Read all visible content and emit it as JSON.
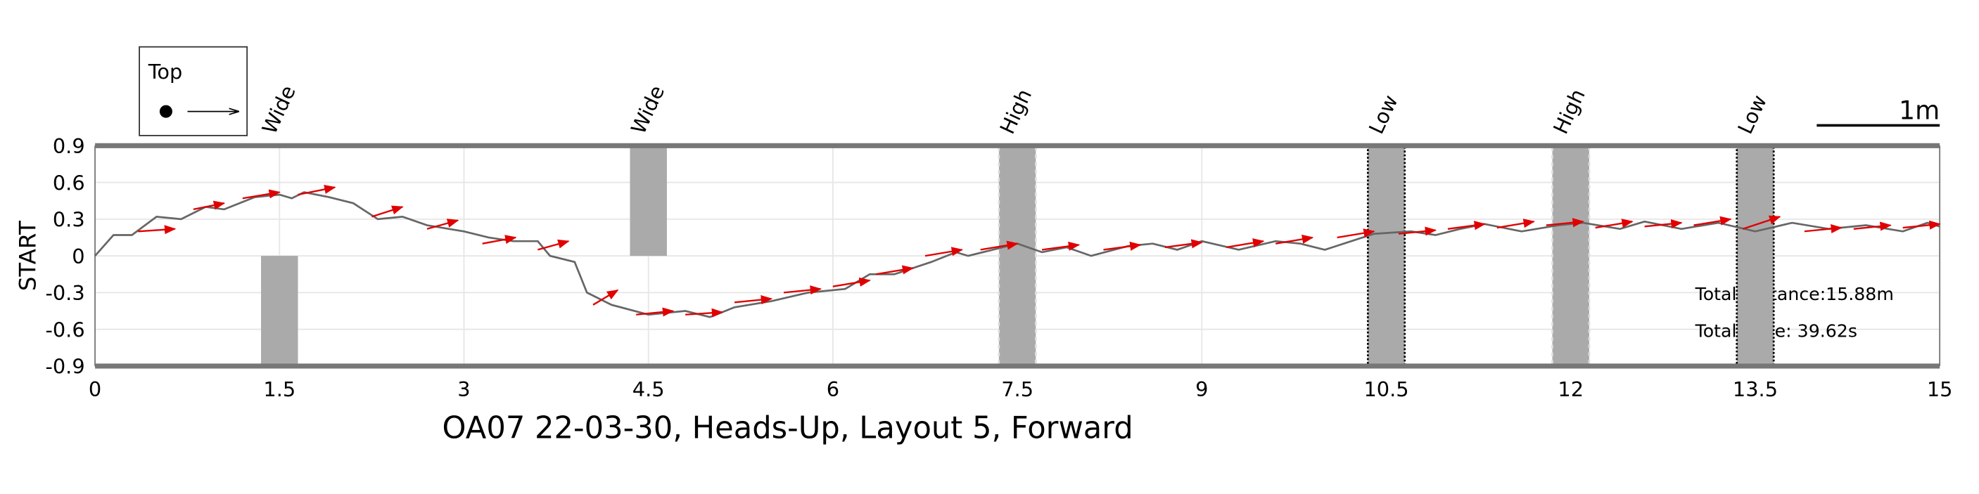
{
  "chart_data": {
    "type": "line",
    "title": "OA07 22-03-30, Heads-Up, Layout 5, Forward",
    "ylabel": "START",
    "xlim": [
      0,
      15
    ],
    "ylim": [
      -0.9,
      0.9
    ],
    "xticks": [
      0,
      1.5,
      3,
      4.5,
      6,
      7.5,
      9,
      10.5,
      12,
      13.5,
      15
    ],
    "yticks": [
      -0.9,
      -0.6,
      -0.3,
      0,
      0.3,
      0.6,
      0.9
    ],
    "grid": true,
    "line_color": "#666666",
    "arrow_color": "#e00000",
    "obstacle_color": "#aaaaaa",
    "x": [
      0,
      0.15,
      0.3,
      0.5,
      0.7,
      0.9,
      1.05,
      1.3,
      1.5,
      1.6,
      1.7,
      1.9,
      2.1,
      2.3,
      2.5,
      2.7,
      3.0,
      3.2,
      3.4,
      3.6,
      3.7,
      3.9,
      4.0,
      4.2,
      4.5,
      4.8,
      5.0,
      5.2,
      5.5,
      5.8,
      6.1,
      6.3,
      6.5,
      6.8,
      7.0,
      7.1,
      7.3,
      7.5,
      7.7,
      7.9,
      8.1,
      8.4,
      8.6,
      8.8,
      9.0,
      9.3,
      9.6,
      9.8,
      10.0,
      10.4,
      10.7,
      10.9,
      11.1,
      11.3,
      11.6,
      11.9,
      12.1,
      12.4,
      12.6,
      12.9,
      13.2,
      13.5,
      13.8,
      14.1,
      14.4,
      14.7,
      14.9,
      15.0
    ],
    "y": [
      0,
      0.17,
      0.17,
      0.32,
      0.3,
      0.4,
      0.38,
      0.48,
      0.5,
      0.47,
      0.52,
      0.48,
      0.43,
      0.3,
      0.32,
      0.25,
      0.2,
      0.15,
      0.12,
      0.12,
      0.0,
      -0.05,
      -0.3,
      -0.4,
      -0.48,
      -0.45,
      -0.5,
      -0.42,
      -0.37,
      -0.3,
      -0.27,
      -0.15,
      -0.15,
      -0.05,
      0.03,
      0.0,
      0.05,
      0.1,
      0.03,
      0.07,
      0.0,
      0.08,
      0.1,
      0.05,
      0.12,
      0.05,
      0.12,
      0.1,
      0.05,
      0.18,
      0.2,
      0.17,
      0.22,
      0.26,
      0.2,
      0.25,
      0.27,
      0.22,
      0.28,
      0.22,
      0.27,
      0.2,
      0.27,
      0.22,
      0.25,
      0.2,
      0.27,
      0.24
    ],
    "arrows": {
      "x": [
        0.35,
        0.8,
        1.2,
        1.65,
        2.25,
        2.7,
        3.15,
        3.6,
        4.05,
        4.4,
        4.8,
        5.2,
        5.6,
        6.0,
        6.35,
        6.75,
        7.2,
        7.7,
        8.2,
        8.7,
        9.2,
        9.6,
        10.1,
        10.6,
        11.0,
        11.4,
        11.8,
        12.2,
        12.6,
        13.0,
        13.4,
        13.9,
        14.3,
        14.7
      ],
      "y": [
        0.2,
        0.38,
        0.47,
        0.5,
        0.32,
        0.22,
        0.1,
        0.05,
        -0.4,
        -0.48,
        -0.48,
        -0.38,
        -0.3,
        -0.25,
        -0.15,
        0.0,
        0.05,
        0.05,
        0.05,
        0.07,
        0.07,
        0.1,
        0.15,
        0.18,
        0.22,
        0.23,
        0.25,
        0.23,
        0.24,
        0.25,
        0.22,
        0.2,
        0.22,
        0.23
      ],
      "u": [
        0.3,
        0.25,
        0.3,
        0.3,
        0.25,
        0.25,
        0.27,
        0.25,
        0.2,
        0.3,
        0.3,
        0.3,
        0.3,
        0.3,
        0.3,
        0.3,
        0.3,
        0.3,
        0.3,
        0.3,
        0.3,
        0.3,
        0.3,
        0.3,
        0.3,
        0.3,
        0.3,
        0.3,
        0.3,
        0.3,
        0.3,
        0.3,
        0.3,
        0.3
      ],
      "v": [
        0.02,
        0.05,
        0.05,
        0.06,
        0.08,
        0.07,
        0.05,
        0.07,
        0.12,
        0.03,
        0.02,
        0.03,
        0.03,
        0.05,
        0.05,
        0.05,
        0.05,
        0.04,
        0.04,
        0.04,
        0.05,
        0.05,
        0.05,
        0.03,
        0.04,
        0.05,
        0.03,
        0.05,
        0.03,
        0.05,
        0.1,
        0.03,
        0.03,
        0.03
      ]
    },
    "obstacles": [
      {
        "label": "Wide",
        "x0": 1.35,
        "x1": 1.65,
        "y0": -0.9,
        "y1": 0,
        "border": "none"
      },
      {
        "label": "Wide",
        "x0": 4.35,
        "x1": 4.65,
        "y0": 0,
        "y1": 0.9,
        "border": "none"
      },
      {
        "label": "High",
        "x0": 7.35,
        "x1": 7.65,
        "y0": -0.9,
        "y1": 0.9,
        "border": "dashed"
      },
      {
        "label": "Low",
        "x0": 10.35,
        "x1": 10.65,
        "y0": -0.9,
        "y1": 0.9,
        "border": "dotted"
      },
      {
        "label": "High",
        "x0": 11.85,
        "x1": 12.15,
        "y0": -0.9,
        "y1": 0.9,
        "border": "dashed"
      },
      {
        "label": "Low",
        "x0": 13.35,
        "x1": 13.65,
        "y0": -0.9,
        "y1": 0.9,
        "border": "dotted"
      }
    ],
    "annotations": [
      "Total Distance:15.88m",
      "Total Time: 39.62s"
    ],
    "legend_title": "Top",
    "scale_bar": {
      "label": "1m",
      "length": 1
    }
  }
}
